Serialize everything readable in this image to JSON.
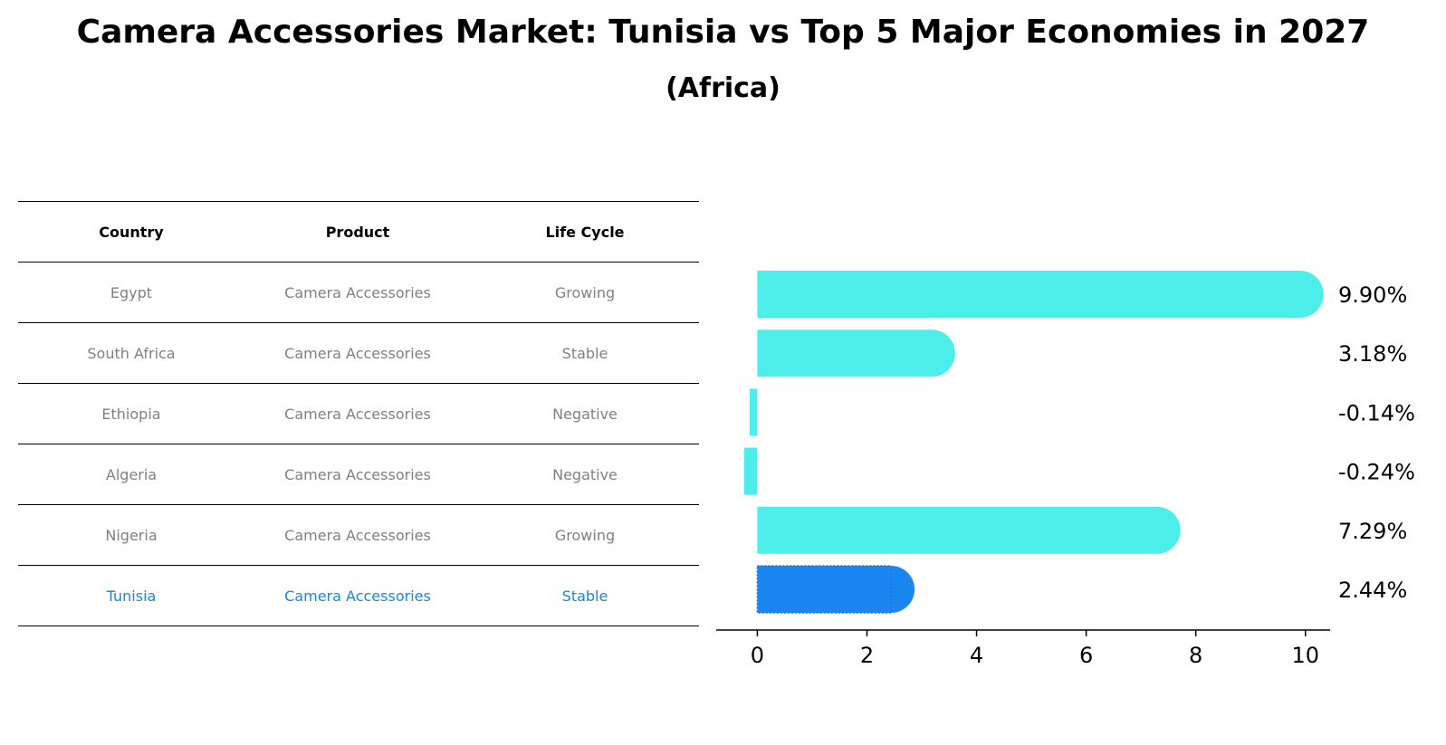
{
  "title": "Camera Accessories Market: Tunisia vs Top 5 Major Economies in 2027",
  "subtitle": "(Africa)",
  "table": {
    "headers": [
      "Country",
      "Product",
      "Life Cycle"
    ],
    "rows": [
      [
        "Egypt",
        "Camera Accessories",
        "Growing"
      ],
      [
        "South Africa",
        "Camera Accessories",
        "Stable"
      ],
      [
        "Ethiopia",
        "Camera Accessories",
        "Negative"
      ],
      [
        "Algeria",
        "Camera Accessories",
        "Negative"
      ],
      [
        "Nigeria",
        "Camera Accessories",
        "Growing"
      ],
      [
        "Tunisia",
        "Camera Accessories",
        "Stable"
      ]
    ],
    "highlight_row": "Tunisia"
  },
  "chart_data": {
    "type": "bar",
    "orientation": "horizontal",
    "categories": [
      "Egypt",
      "South Africa",
      "Ethiopia",
      "Algeria",
      "Nigeria",
      "Tunisia"
    ],
    "values": [
      9.9,
      3.18,
      -0.14,
      -0.24,
      7.29,
      2.44
    ],
    "value_labels": [
      "9.90%",
      "3.18%",
      "-0.14%",
      "-0.24%",
      "7.29%",
      "2.44%"
    ],
    "xlim": [
      -0.75,
      10.45
    ],
    "xticks": [
      0,
      2,
      4,
      6,
      8,
      10
    ],
    "colors": {
      "default": "#4dedea",
      "highlight": "#1a86f0"
    },
    "highlight_category": "Tunisia",
    "grid": false,
    "legend": "none"
  }
}
